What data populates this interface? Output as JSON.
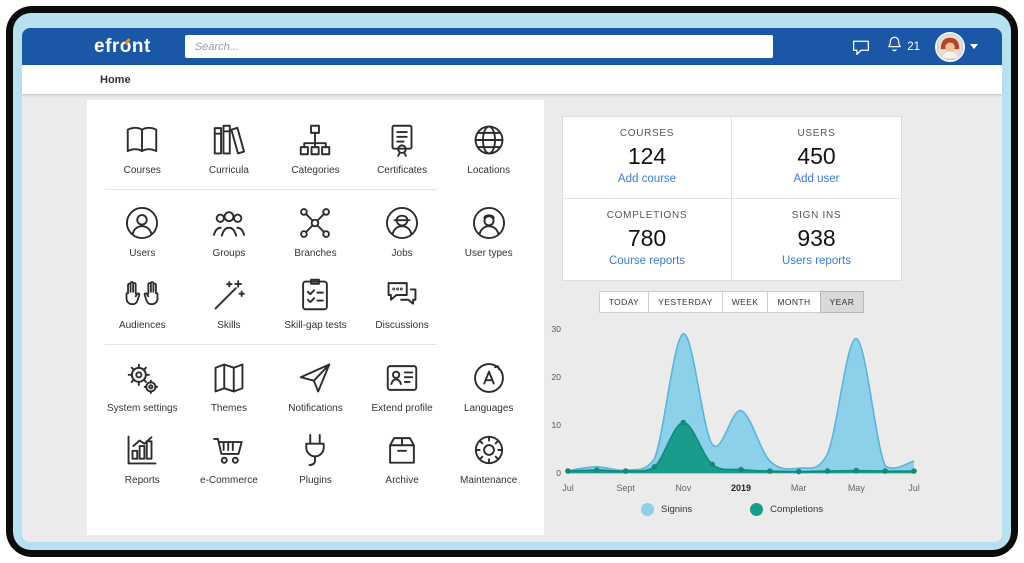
{
  "header": {
    "logo": {
      "pre": "efr",
      "o": "o",
      "post": "nt"
    },
    "search": {
      "placeholder": "Search..."
    },
    "notifications": {
      "count": "21"
    }
  },
  "breadcrumb": {
    "home": "Home"
  },
  "menu": {
    "sections": [
      {
        "items": [
          {
            "label": "Courses",
            "icon": "book"
          },
          {
            "label": "Curricula",
            "icon": "books"
          },
          {
            "label": "Categories",
            "icon": "hierarchy"
          },
          {
            "label": "Certificates",
            "icon": "certificate"
          },
          {
            "label": "Locations",
            "icon": "globe"
          }
        ]
      },
      {
        "items": [
          {
            "label": "Users",
            "icon": "user"
          },
          {
            "label": "Groups",
            "icon": "group"
          },
          {
            "label": "Branches",
            "icon": "network"
          },
          {
            "label": "Jobs",
            "icon": "worker"
          },
          {
            "label": "User types",
            "icon": "user-type"
          },
          {
            "label": "Audiences",
            "icon": "hands"
          },
          {
            "label": "Skills",
            "icon": "wand"
          },
          {
            "label": "Skill-gap tests",
            "icon": "checklist"
          },
          {
            "label": "Discussions",
            "icon": "chat"
          }
        ]
      },
      {
        "items": [
          {
            "label": "System settings",
            "icon": "gears"
          },
          {
            "label": "Themes",
            "icon": "map"
          },
          {
            "label": "Notifications",
            "icon": "paper-plane"
          },
          {
            "label": "Extend profile",
            "icon": "id-card"
          },
          {
            "label": "Languages",
            "icon": "translate"
          },
          {
            "label": "Reports",
            "icon": "bar-chart"
          },
          {
            "label": "e-Commerce",
            "icon": "cart"
          },
          {
            "label": "Plugins",
            "icon": "plug"
          },
          {
            "label": "Archive",
            "icon": "box"
          },
          {
            "label": "Maintenance",
            "icon": "gear-wheel"
          }
        ]
      }
    ]
  },
  "stats": {
    "cells": [
      {
        "label": "COURSES",
        "value": "124",
        "action": "Add course"
      },
      {
        "label": "USERS",
        "value": "450",
        "action": "Add user"
      },
      {
        "label": "COMPLETIONS",
        "value": "780",
        "action": "Course reports"
      },
      {
        "label": "SIGN INS",
        "value": "938",
        "action": "Users reports"
      }
    ]
  },
  "filters": {
    "options": [
      "TODAY",
      "YESTERDAY",
      "WEEK",
      "MONTH",
      "YEAR"
    ],
    "selected": "YEAR"
  },
  "chart_data": {
    "type": "area",
    "x_labels": [
      "Jul",
      "",
      "Sept",
      "",
      "Nov",
      "",
      "2019",
      "",
      "Mar",
      "",
      "May",
      "",
      "Jul"
    ],
    "ylim": [
      0,
      30
    ],
    "yticks": [
      0,
      10,
      20,
      30
    ],
    "series": [
      {
        "name": "Signins",
        "color": "#8dd0ea",
        "stroke": "#58b6d8",
        "dots": false,
        "values": [
          0.5,
          1.3,
          0.6,
          3,
          29,
          6,
          13,
          2.5,
          1,
          4,
          28,
          1.5,
          2.5
        ]
      },
      {
        "name": "Completions",
        "color": "#1a9c8d",
        "stroke": "#0e8a7c",
        "dots": true,
        "values": [
          0.4,
          0.6,
          0.4,
          1.3,
          10.5,
          1.8,
          0.7,
          0.4,
          0.3,
          0.4,
          0.5,
          0.4,
          0.4
        ]
      }
    ]
  },
  "colors": {
    "topbar_blue": "#1b57a7",
    "logo_accent_orange": "#f18a1d",
    "link_blue": "#3b7cd5",
    "bezel_light_blue": "#b7e0f1"
  }
}
